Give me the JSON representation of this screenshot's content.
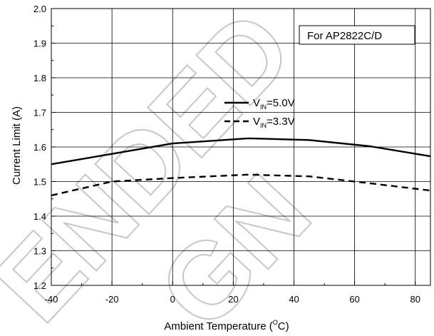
{
  "chart_data": {
    "type": "line",
    "annotation": "For AP2822C/D",
    "xlabel": "Ambient Temperature (",
    "xlabel_unit_sup": "O",
    "xlabel_unit": "C)",
    "ylabel": "Current Limit (A)",
    "xlim": [
      -40,
      85
    ],
    "ylim": [
      1.2,
      2.0
    ],
    "xticks": [
      -40,
      -20,
      0,
      20,
      40,
      60,
      80
    ],
    "xtick_labels": [
      "-40",
      "-20",
      "0",
      "20",
      "40",
      "60",
      "80"
    ],
    "yticks": [
      1.2,
      1.3,
      1.4,
      1.5,
      1.6,
      1.7,
      1.8,
      1.9,
      2.0
    ],
    "ytick_labels": [
      "1.2",
      "1.3",
      "1.4",
      "1.5",
      "1.6",
      "1.7",
      "1.8",
      "1.9",
      "2.0"
    ],
    "grid": true,
    "series": [
      {
        "label_main": "V",
        "label_sub": "IN",
        "label_value": "=5.0V",
        "style": "solid",
        "color": "#000000",
        "x": [
          -40,
          -20,
          0,
          25,
          45,
          65,
          85
        ],
        "y": [
          1.55,
          1.58,
          1.61,
          1.625,
          1.62,
          1.602,
          1.573
        ]
      },
      {
        "label_main": "V",
        "label_sub": "IN",
        "label_value": "=3.3V",
        "style": "dashed",
        "color": "#000000",
        "x": [
          -40,
          -20,
          0,
          25,
          45,
          65,
          85
        ],
        "y": [
          1.46,
          1.5,
          1.51,
          1.52,
          1.515,
          1.495,
          1.474
        ]
      }
    ],
    "watermark_words": [
      "ENDED",
      "GN"
    ]
  }
}
